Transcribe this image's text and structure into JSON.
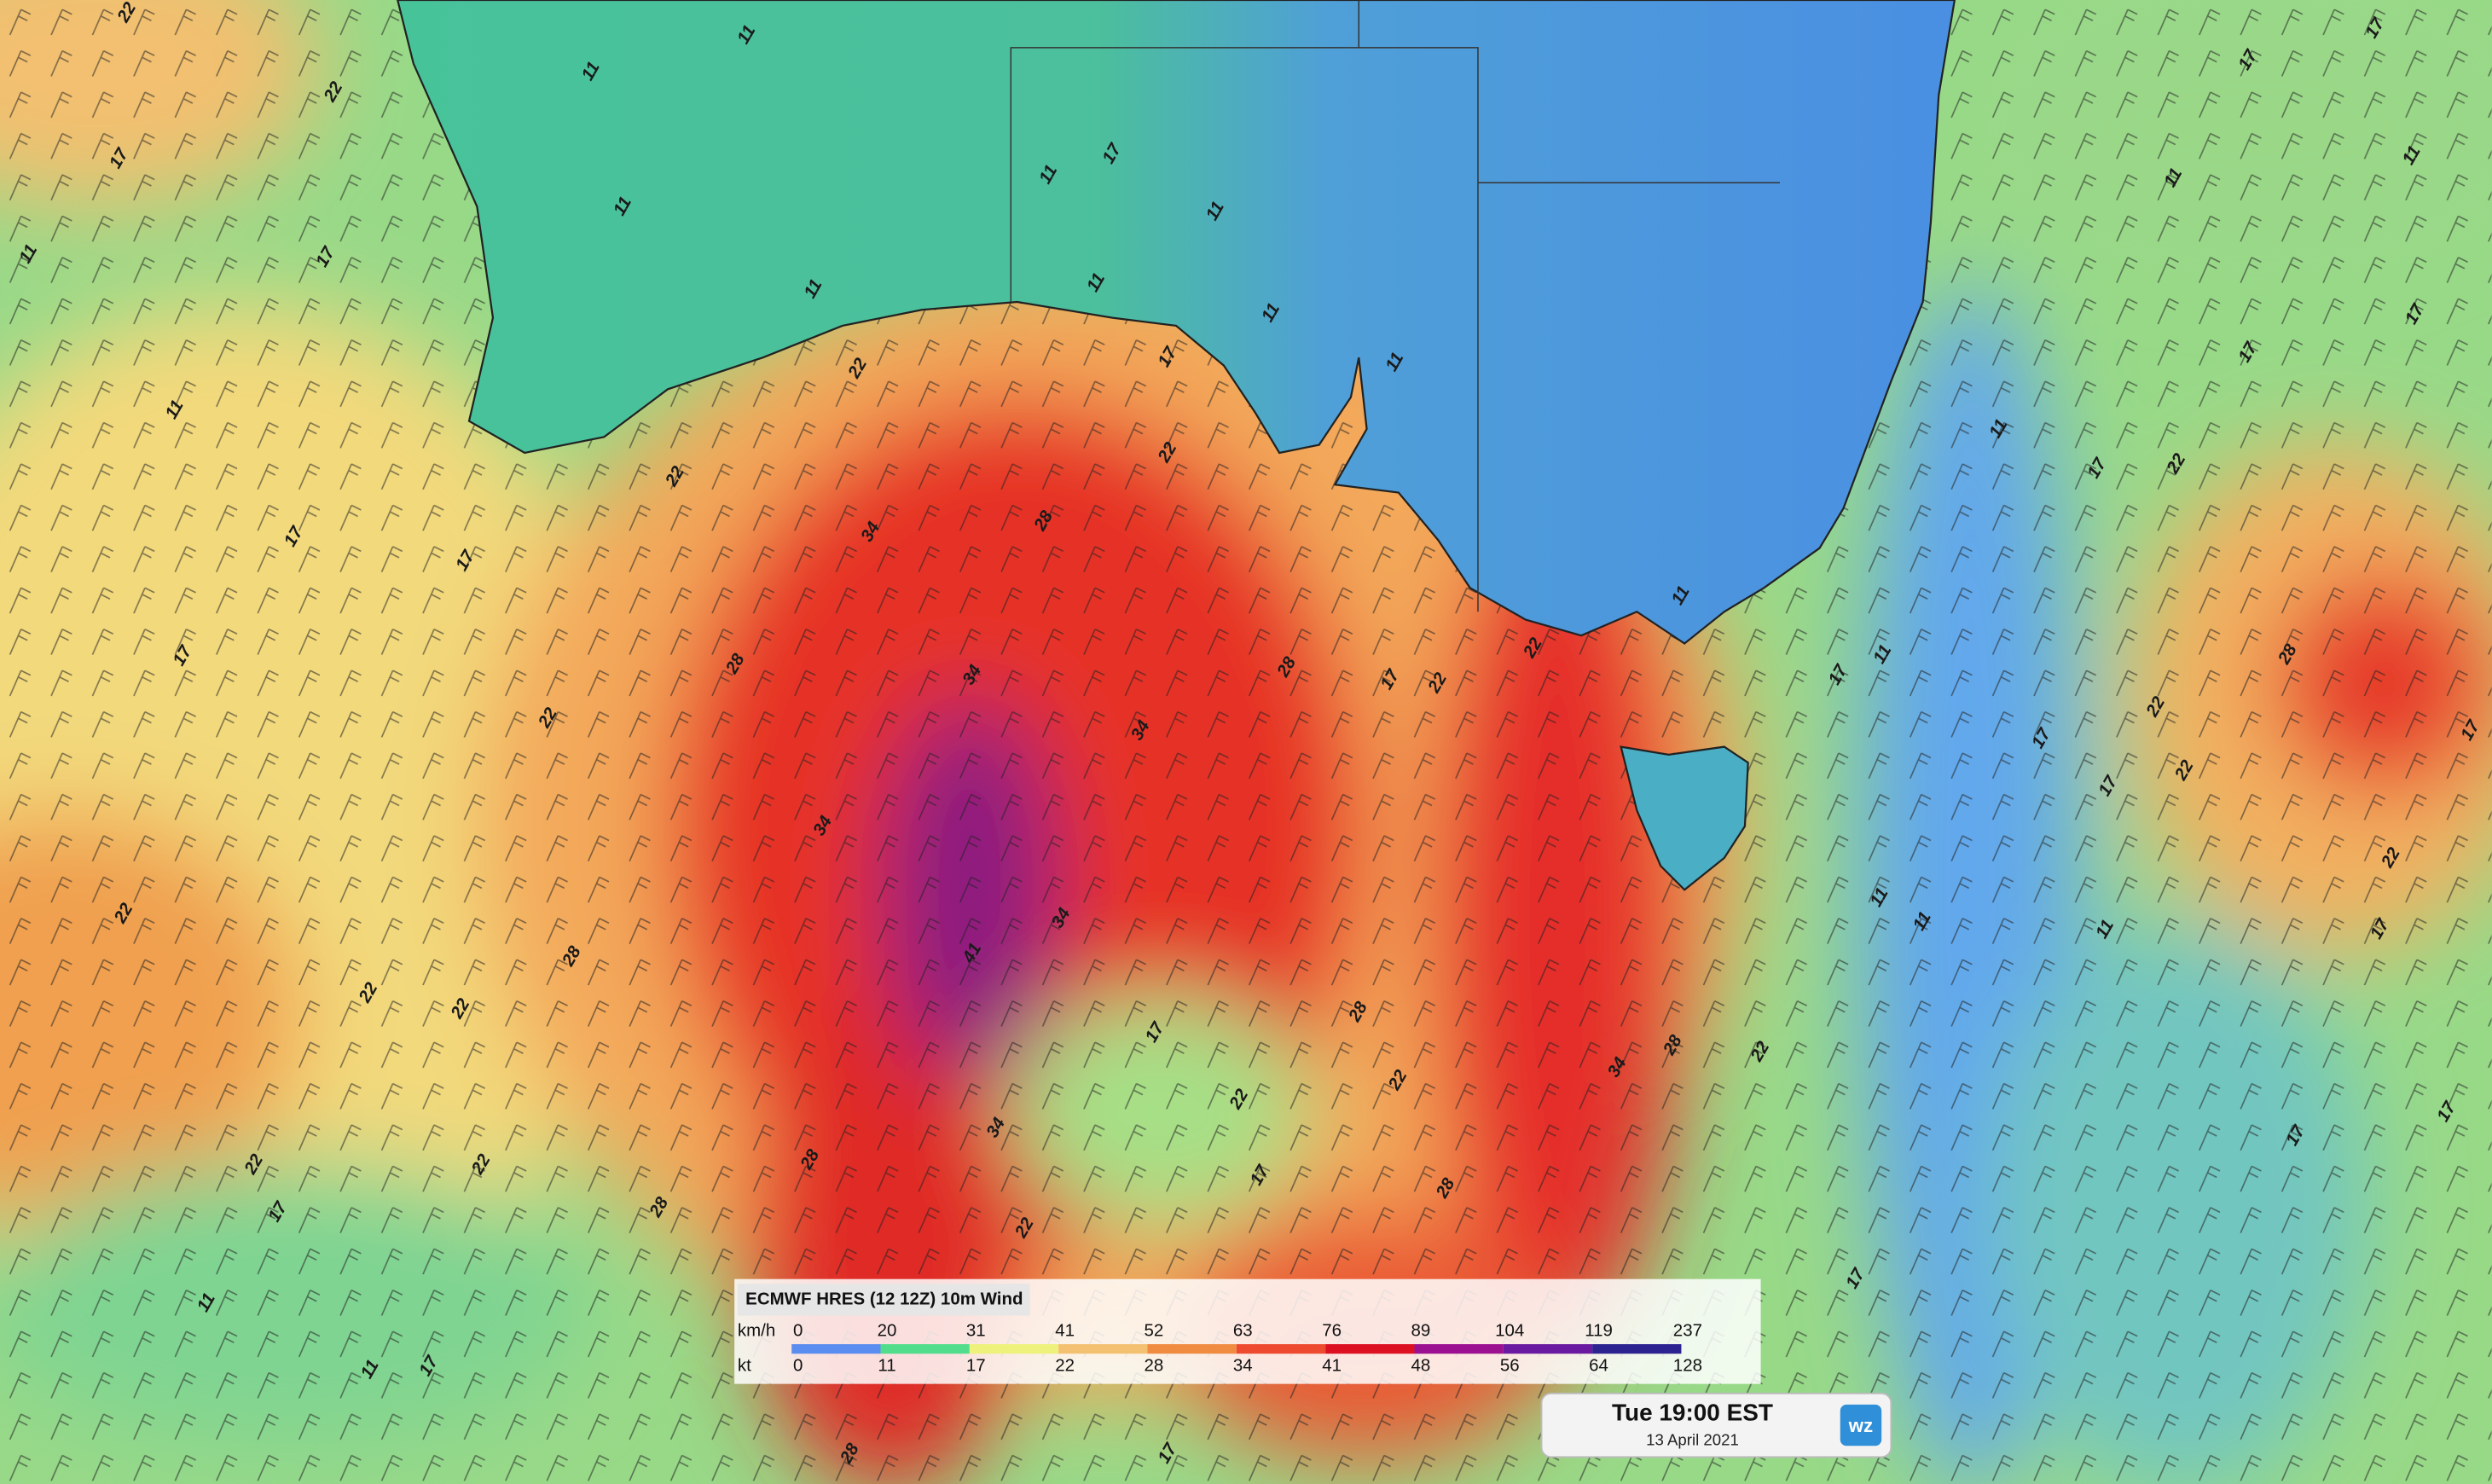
{
  "legend": {
    "title": "ECMWF HRES (12 12Z) 10m Wind",
    "scales": [
      {
        "label": "km/h",
        "ticks": [
          0,
          20,
          31,
          41,
          52,
          63,
          76,
          89,
          104,
          119,
          237
        ]
      },
      {
        "label": "kt",
        "ticks": [
          0,
          11,
          17,
          22,
          28,
          34,
          41,
          48,
          56,
          64,
          128
        ]
      }
    ],
    "colors": [
      "#5b8df0",
      "#52dd8c",
      "#eef27c",
      "#f4c072",
      "#f08c42",
      "#ee4a30",
      "#dc1020",
      "#9a1090",
      "#6a1aa0",
      "#2c2290"
    ]
  },
  "timestamp": {
    "time": "Tue 19:00 EST",
    "date": "13 April 2021"
  },
  "logo": "wz",
  "contour_labels": [
    22,
    22,
    11,
    11,
    17,
    11,
    17,
    11,
    11,
    11,
    17,
    11,
    11,
    11,
    11,
    17,
    22,
    22,
    22,
    34,
    28,
    11,
    17,
    17,
    17,
    28,
    22,
    34,
    34,
    28,
    17,
    22,
    22,
    11,
    34,
    22,
    22,
    28,
    34,
    41,
    22,
    28,
    17,
    22,
    22,
    34,
    28,
    34,
    22,
    22,
    28,
    28,
    22,
    17,
    28,
    17,
    11,
    17,
    11,
    17,
    22,
    17,
    11,
    11,
    11,
    17,
    22,
    17,
    17,
    17,
    17,
    11,
    22,
    17,
    22,
    28,
    22,
    17,
    17,
    17,
    11,
    11,
    17,
    17,
    11,
    28,
    17
  ]
}
